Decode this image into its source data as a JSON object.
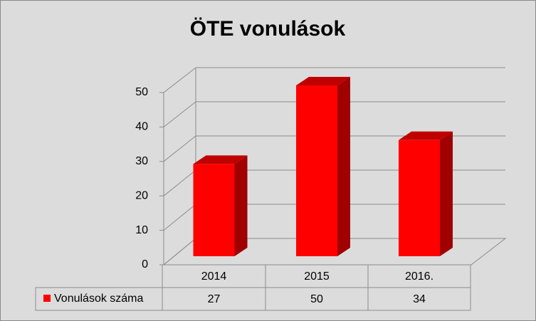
{
  "chart_data": {
    "type": "bar3d",
    "title": "ÖTE vonulások",
    "categories": [
      "2014",
      "2015",
      "2016."
    ],
    "series": [
      {
        "name": "Vonulások száma",
        "color": "#ff0000",
        "values": [
          27,
          50,
          34
        ]
      }
    ],
    "ylim": [
      0,
      50
    ],
    "yticks": [
      0,
      10,
      20,
      30,
      40,
      50
    ],
    "grid": true,
    "data_table": true
  }
}
